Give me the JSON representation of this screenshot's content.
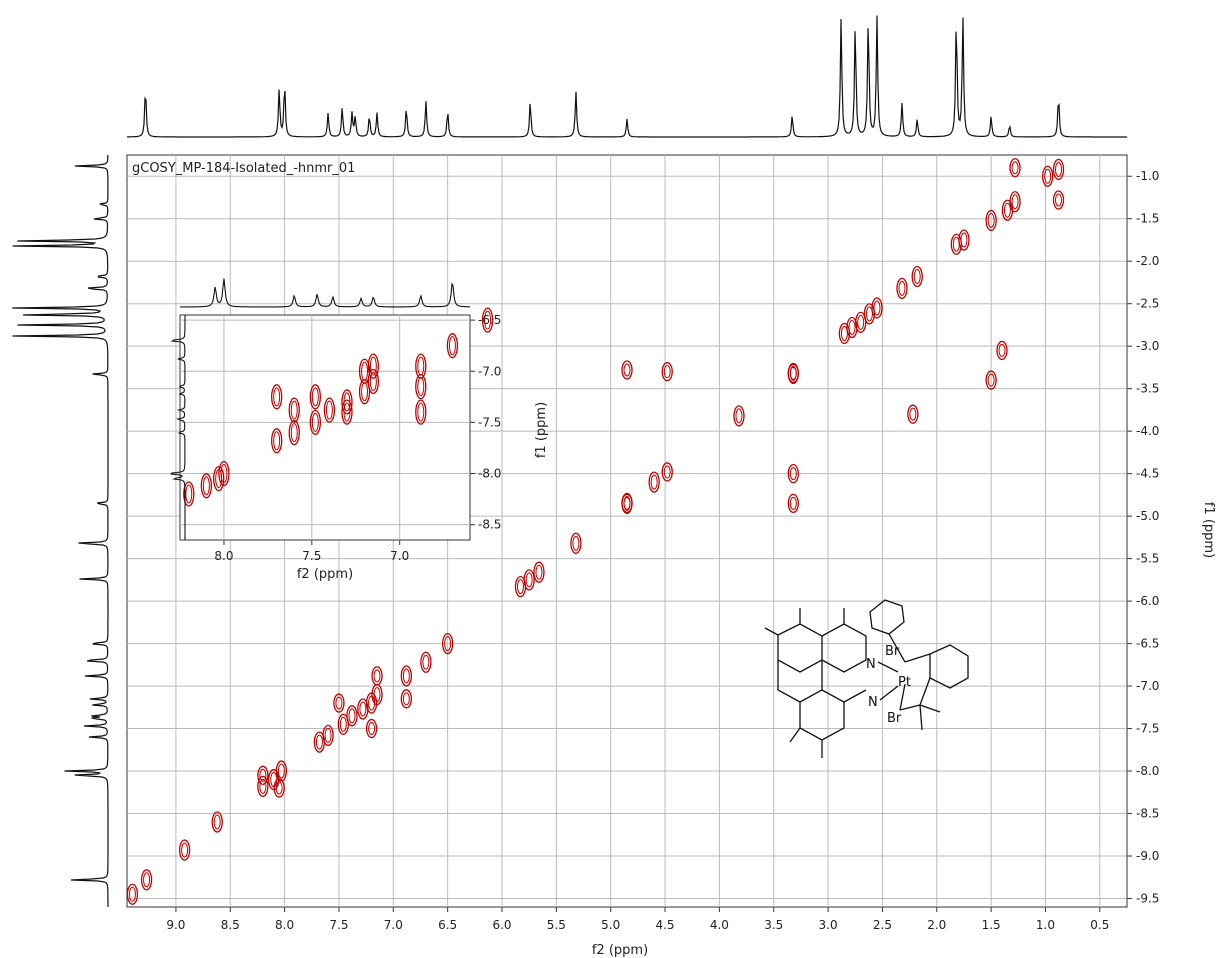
{
  "chart_data": [
    {
      "type": "scatter",
      "title": "gCOSY_MP-184-Isolated_-hnmr_01",
      "xlabel": "f2 (ppm)",
      "ylabel": "f1 (ppm)",
      "xlim": [
        9.45,
        0.25
      ],
      "ylim": [
        0.75,
        9.6
      ],
      "x_ticks": [
        "9.0",
        "8.5",
        "8.0",
        "7.5",
        "7.0",
        "6.5",
        "6.0",
        "5.5",
        "5.0",
        "4.5",
        "4.0",
        "3.5",
        "3.0",
        "2.5",
        "2.0",
        "1.5",
        "1.0",
        "0.5"
      ],
      "y_ticks": [
        "1.0",
        "1.5",
        "2.0",
        "2.5",
        "3.0",
        "3.5",
        "4.0",
        "4.5",
        "5.0",
        "5.5",
        "6.0",
        "6.5",
        "7.0",
        "7.5",
        "8.0",
        "8.5",
        "9.0",
        "9.5"
      ],
      "grid": true,
      "contour_color": "#c00000",
      "diagonal_peaks": [
        [
          9.4,
          9.45
        ],
        [
          9.27,
          9.28
        ],
        [
          8.92,
          8.93
        ],
        [
          8.62,
          8.6
        ],
        [
          8.2,
          8.18
        ],
        [
          8.1,
          8.1
        ],
        [
          8.03,
          8.0
        ],
        [
          7.68,
          7.66
        ],
        [
          7.6,
          7.58
        ],
        [
          7.46,
          7.45
        ],
        [
          7.38,
          7.35
        ],
        [
          7.28,
          7.27
        ],
        [
          7.2,
          7.2
        ],
        [
          7.15,
          7.1
        ],
        [
          6.88,
          6.88
        ],
        [
          6.7,
          6.72
        ],
        [
          6.5,
          6.5
        ],
        [
          5.83,
          5.83
        ],
        [
          5.75,
          5.75
        ],
        [
          5.66,
          5.66
        ],
        [
          5.32,
          5.32
        ],
        [
          4.85,
          4.85
        ],
        [
          4.6,
          4.6
        ],
        [
          3.82,
          3.82
        ],
        [
          3.32,
          3.32
        ],
        [
          2.85,
          2.85
        ],
        [
          2.78,
          2.78
        ],
        [
          2.7,
          2.72
        ],
        [
          2.62,
          2.62
        ],
        [
          2.55,
          2.55
        ],
        [
          2.32,
          2.32
        ],
        [
          2.18,
          2.18
        ],
        [
          1.82,
          1.8
        ],
        [
          1.75,
          1.75
        ],
        [
          1.5,
          1.52
        ],
        [
          1.35,
          1.4
        ],
        [
          1.28,
          1.3
        ],
        [
          0.98,
          1.0
        ],
        [
          0.88,
          0.92
        ]
      ],
      "cross_peaks": [
        [
          4.85,
          3.28
        ],
        [
          4.85,
          4.85
        ],
        [
          4.48,
          3.3
        ],
        [
          4.48,
          4.48
        ],
        [
          3.32,
          3.32
        ],
        [
          3.32,
          4.5
        ],
        [
          3.32,
          4.85
        ],
        [
          0.88,
          1.28
        ],
        [
          1.28,
          0.9
        ],
        [
          1.5,
          3.4
        ],
        [
          1.4,
          3.05
        ],
        [
          2.22,
          3.8
        ],
        [
          7.5,
          7.2
        ],
        [
          7.2,
          7.5
        ],
        [
          7.15,
          6.88
        ],
        [
          6.88,
          7.15
        ],
        [
          8.05,
          8.2
        ],
        [
          8.2,
          8.05
        ]
      ],
      "f2_projection_peaks": [
        {
          "x": 9.28,
          "h": 0.42
        },
        {
          "x": 8.05,
          "h": 0.4
        },
        {
          "x": 8.0,
          "h": 0.45
        },
        {
          "x": 7.6,
          "h": 0.2
        },
        {
          "x": 7.47,
          "h": 0.25
        },
        {
          "x": 7.38,
          "h": 0.2
        },
        {
          "x": 7.35,
          "h": 0.17
        },
        {
          "x": 7.22,
          "h": 0.18
        },
        {
          "x": 7.15,
          "h": 0.2
        },
        {
          "x": 6.88,
          "h": 0.25
        },
        {
          "x": 6.7,
          "h": 0.3
        },
        {
          "x": 6.5,
          "h": 0.22
        },
        {
          "x": 5.74,
          "h": 0.3
        },
        {
          "x": 5.32,
          "h": 0.38
        },
        {
          "x": 4.85,
          "h": 0.15
        },
        {
          "x": 3.33,
          "h": 0.18
        },
        {
          "x": 2.88,
          "h": 1.0
        },
        {
          "x": 2.75,
          "h": 0.95
        },
        {
          "x": 2.63,
          "h": 1.0
        },
        {
          "x": 2.55,
          "h": 1.0
        },
        {
          "x": 2.32,
          "h": 0.28
        },
        {
          "x": 2.18,
          "h": 0.15
        },
        {
          "x": 1.82,
          "h": 1.0
        },
        {
          "x": 1.76,
          "h": 1.0
        },
        {
          "x": 1.5,
          "h": 0.17
        },
        {
          "x": 1.33,
          "h": 0.1
        },
        {
          "x": 0.88,
          "h": 0.35
        }
      ]
    },
    {
      "type": "scatter",
      "title": "",
      "xlabel": "f2 (ppm)",
      "ylabel": "f1 (ppm)",
      "xlim": [
        8.25,
        6.6
      ],
      "ylim": [
        6.45,
        8.65
      ],
      "x_ticks": [
        "8.0",
        "7.5",
        "7.0"
      ],
      "y_ticks": [
        "6.5",
        "7.0",
        "7.5",
        "8.0",
        "8.5"
      ],
      "grid": true,
      "peaks": [
        [
          8.2,
          8.2
        ],
        [
          8.1,
          8.12
        ],
        [
          8.03,
          8.05
        ],
        [
          8.0,
          8.0
        ],
        [
          7.7,
          7.25
        ],
        [
          7.7,
          7.68
        ],
        [
          7.6,
          7.38
        ],
        [
          7.6,
          7.6
        ],
        [
          7.48,
          7.25
        ],
        [
          7.48,
          7.5
        ],
        [
          7.4,
          7.38
        ],
        [
          7.3,
          7.4
        ],
        [
          7.3,
          7.3
        ],
        [
          7.2,
          7.2
        ],
        [
          7.2,
          7.0
        ],
        [
          7.15,
          7.1
        ],
        [
          7.15,
          6.95
        ],
        [
          6.88,
          6.95
        ],
        [
          6.88,
          7.15
        ],
        [
          6.88,
          7.4
        ],
        [
          6.7,
          6.75
        ],
        [
          6.5,
          6.5
        ]
      ],
      "projection_peaks": [
        {
          "x": 8.05,
          "h": 0.7
        },
        {
          "x": 8.0,
          "h": 1.0
        },
        {
          "x": 7.6,
          "h": 0.4
        },
        {
          "x": 7.47,
          "h": 0.45
        },
        {
          "x": 7.38,
          "h": 0.35
        },
        {
          "x": 7.22,
          "h": 0.3
        },
        {
          "x": 7.15,
          "h": 0.35
        },
        {
          "x": 6.88,
          "h": 0.4
        },
        {
          "x": 6.7,
          "h": 0.9
        }
      ]
    }
  ],
  "molecule": {
    "labels": {
      "n1": "N",
      "n2": "N",
      "br1": "Br",
      "br2": "Br",
      "pt": "Pt"
    }
  }
}
